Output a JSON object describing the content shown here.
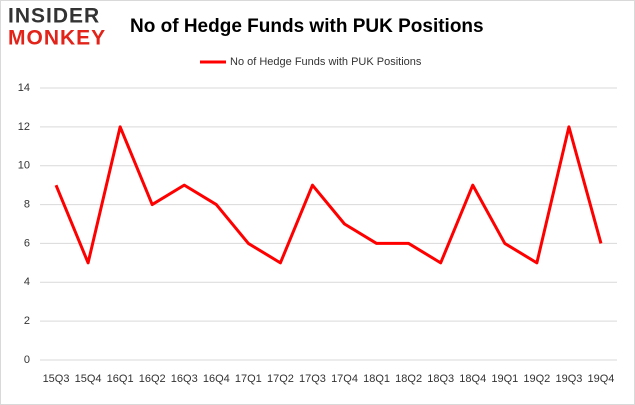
{
  "logo": [
    "INSIDER",
    "MONKEY"
  ],
  "chart_data": {
    "type": "line",
    "title": "No of Hedge Funds with PUK Positions",
    "categories": [
      "15Q3",
      "15Q4",
      "16Q1",
      "16Q2",
      "16Q3",
      "16Q4",
      "17Q1",
      "17Q2",
      "17Q3",
      "17Q4",
      "18Q1",
      "18Q2",
      "18Q3",
      "18Q4",
      "19Q1",
      "19Q2",
      "19Q3",
      "19Q4"
    ],
    "series": [
      {
        "name": "No of Hedge Funds with PUK Positions",
        "color": "#ff0000",
        "values": [
          9,
          5,
          12,
          8,
          9,
          8,
          6,
          5,
          9,
          7,
          6,
          6,
          5,
          9,
          6,
          5,
          12,
          6
        ]
      }
    ],
    "ylim": [
      0,
      14
    ],
    "yticks": [
      0,
      2,
      4,
      6,
      8,
      10,
      12,
      14
    ],
    "grid": true,
    "legend": "top"
  }
}
